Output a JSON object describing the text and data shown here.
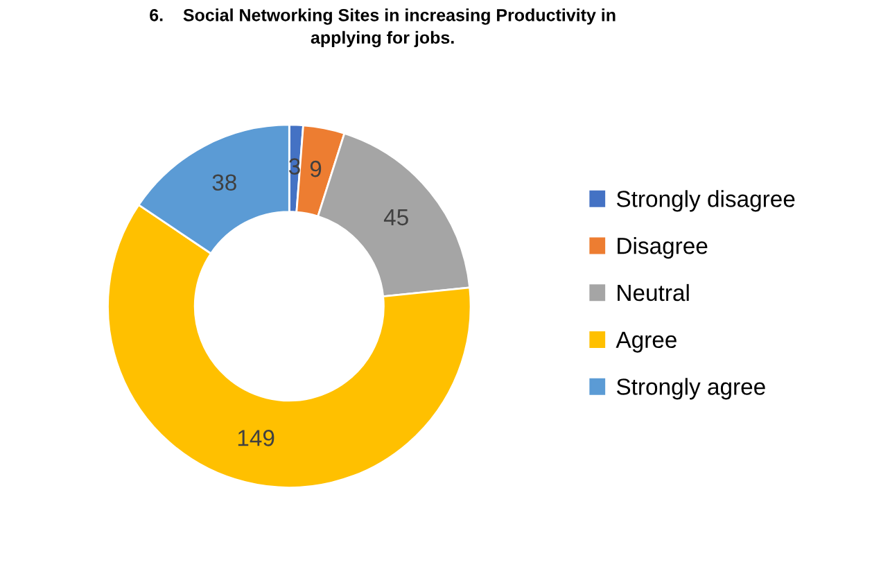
{
  "chart_data": {
    "type": "donut",
    "title": "6.    Social Networking Sites in increasing Productivity in\napplying for jobs.",
    "categories": [
      "Strongly disagree",
      "Disagree",
      "Neutral",
      "Agree",
      "Strongly agree"
    ],
    "values": [
      3,
      9,
      45,
      149,
      38
    ],
    "colors": [
      "#4472c4",
      "#ed7d31",
      "#a5a5a5",
      "#ffc000",
      "#5b9bd5"
    ],
    "data_labels": true,
    "legend": "right"
  }
}
